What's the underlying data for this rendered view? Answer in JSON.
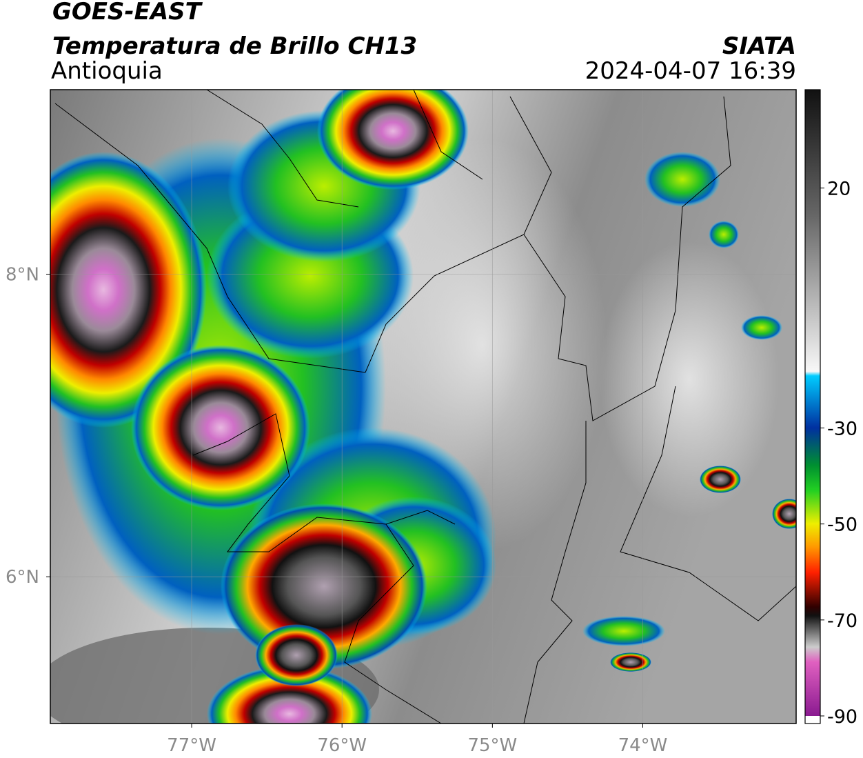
{
  "header": {
    "satellite": "GOES-EAST",
    "product": "Temperatura de Brillo CH13",
    "region": "Antioquia",
    "source": "SIATA",
    "datetime": "2024-04-07 16:39"
  },
  "map": {
    "xlim": [
      -77.94,
      -72.98
    ],
    "ylim": [
      5.03,
      9.22
    ],
    "xticks": [
      {
        "value": -77,
        "label": "77°W"
      },
      {
        "value": -76,
        "label": "76°W"
      },
      {
        "value": -75,
        "label": "75°W"
      },
      {
        "value": -74,
        "label": "74°W"
      }
    ],
    "yticks": [
      {
        "value": 6,
        "label": "6°N"
      },
      {
        "value": 8,
        "label": "8°N"
      }
    ]
  },
  "colorbar": {
    "lim": [
      -90,
      40.5
    ],
    "ticks": [
      20,
      -30,
      -50,
      -70,
      -90
    ]
  }
}
